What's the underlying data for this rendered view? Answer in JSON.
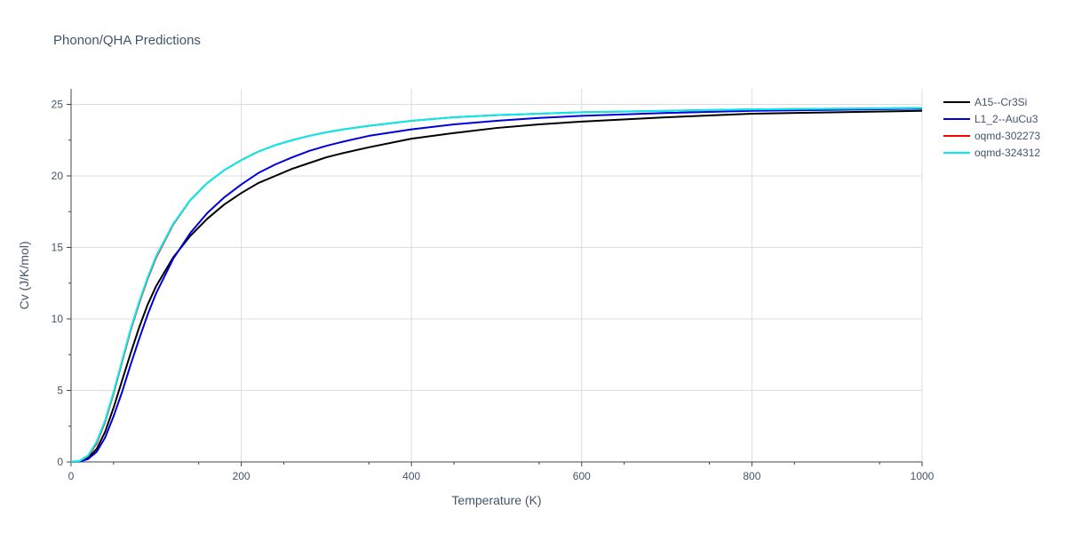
{
  "chart_data": {
    "type": "line",
    "title": "Phonon/QHA Predictions",
    "xlabel": "Temperature (K)",
    "ylabel": "Cv (J/K/mol)",
    "xlim": [
      0,
      1000
    ],
    "ylim": [
      0,
      26
    ],
    "x_ticks": [
      0,
      200,
      400,
      600,
      800,
      1000
    ],
    "y_ticks": [
      0,
      5,
      10,
      15,
      20,
      25
    ],
    "grid": true,
    "legend_position": "top-right",
    "series": [
      {
        "name": "A15--Cr3Si",
        "color": "#000000",
        "x": [
          0,
          10,
          20,
          30,
          40,
          50,
          60,
          70,
          80,
          90,
          100,
          120,
          140,
          160,
          180,
          200,
          220,
          240,
          260,
          280,
          300,
          320,
          350,
          400,
          450,
          500,
          550,
          600,
          700,
          800,
          900,
          1000
        ],
        "y": [
          0,
          0.05,
          0.3,
          0.9,
          2.1,
          3.8,
          5.7,
          7.6,
          9.4,
          11.0,
          12.3,
          14.3,
          15.8,
          17.0,
          18.0,
          18.8,
          19.5,
          20.0,
          20.5,
          20.9,
          21.3,
          21.6,
          22.0,
          22.6,
          23.0,
          23.35,
          23.6,
          23.8,
          24.1,
          24.35,
          24.45,
          24.55
        ]
      },
      {
        "name": "L1_2--AuCu3",
        "color": "#0000dd",
        "x": [
          0,
          10,
          20,
          30,
          40,
          50,
          60,
          70,
          80,
          90,
          100,
          120,
          140,
          160,
          180,
          200,
          220,
          240,
          260,
          280,
          300,
          320,
          350,
          400,
          450,
          500,
          550,
          600,
          700,
          800,
          900,
          1000
        ],
        "y": [
          0,
          0.03,
          0.2,
          0.7,
          1.7,
          3.2,
          4.9,
          6.8,
          8.6,
          10.3,
          11.8,
          14.2,
          16.0,
          17.4,
          18.5,
          19.4,
          20.2,
          20.8,
          21.3,
          21.75,
          22.1,
          22.4,
          22.8,
          23.25,
          23.6,
          23.85,
          24.05,
          24.2,
          24.4,
          24.55,
          24.62,
          24.7
        ]
      },
      {
        "name": "oqmd-302273",
        "color": "#ff0000",
        "x": [
          0,
          10,
          20,
          30,
          40,
          50,
          60,
          70,
          80,
          90,
          100,
          120,
          140,
          160,
          180,
          200,
          220,
          240,
          260,
          280,
          300,
          320,
          350,
          400,
          450,
          500,
          550,
          600,
          700,
          800,
          900,
          1000
        ],
        "y": [
          0,
          0.06,
          0.4,
          1.3,
          2.8,
          4.8,
          7.0,
          9.2,
          11.1,
          12.8,
          14.3,
          16.6,
          18.3,
          19.5,
          20.4,
          21.1,
          21.7,
          22.15,
          22.5,
          22.8,
          23.05,
          23.25,
          23.5,
          23.85,
          24.1,
          24.25,
          24.35,
          24.45,
          24.55,
          24.65,
          24.7,
          24.75
        ]
      },
      {
        "name": "oqmd-324312",
        "color": "#00f0f0",
        "x": [
          0,
          10,
          20,
          30,
          40,
          50,
          60,
          70,
          80,
          90,
          100,
          120,
          140,
          160,
          180,
          200,
          220,
          240,
          260,
          280,
          300,
          320,
          350,
          400,
          450,
          500,
          550,
          600,
          700,
          800,
          900,
          1000
        ],
        "y": [
          0,
          0.07,
          0.45,
          1.4,
          2.9,
          4.9,
          7.1,
          9.3,
          11.2,
          12.9,
          14.4,
          16.65,
          18.3,
          19.5,
          20.4,
          21.1,
          21.7,
          22.15,
          22.5,
          22.8,
          23.05,
          23.25,
          23.5,
          23.85,
          24.1,
          24.25,
          24.35,
          24.45,
          24.55,
          24.65,
          24.7,
          24.75
        ]
      }
    ]
  }
}
